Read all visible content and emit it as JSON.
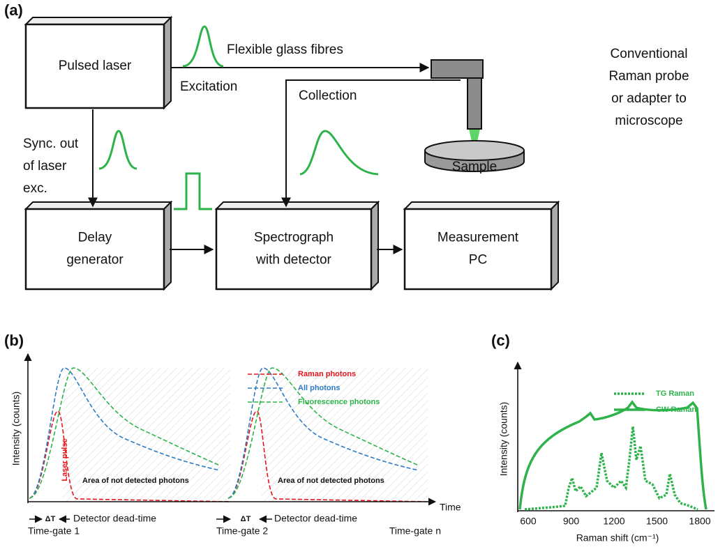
{
  "panel_a": {
    "label": "(a)",
    "boxes": [
      {
        "lines": [
          "Pulsed laser"
        ]
      },
      {
        "lines": [
          "Delay",
          "generator"
        ]
      },
      {
        "lines": [
          "Spectrograph",
          "with detector"
        ]
      },
      {
        "lines": [
          "Measurement",
          "PC"
        ]
      }
    ],
    "fibres": "Flexible glass fibres",
    "excitation": "Excitation",
    "collection": "Collection",
    "probe_lines": [
      "Conventional",
      "Raman probe",
      "or adapter to",
      "microscope"
    ],
    "sync_lines": [
      "Sync. out",
      "of laser",
      "exc."
    ],
    "sample": "Sample"
  },
  "panel_b": {
    "label": "(b)",
    "y_label": "Intensity (counts)",
    "x_label": "Time",
    "legend": [
      "Raman photons",
      "All photons",
      "Fluorescence photons"
    ],
    "laser_pulse": "Laser pulse",
    "area_label": "Area of not detected photons",
    "delta": "ΔT",
    "dead_time": "Detector dead-time",
    "gates": [
      "Time-gate 1",
      "Time-gate 2",
      "Time-gate n"
    ]
  },
  "panel_c": {
    "label": "(c)",
    "y_label": "Intensity (counts)",
    "x_label": "Raman shift (cm⁻¹)",
    "xticks": [
      600,
      900,
      1200,
      1500,
      1800
    ],
    "legend": [
      "TG Raman",
      "CW Raman"
    ]
  }
}
